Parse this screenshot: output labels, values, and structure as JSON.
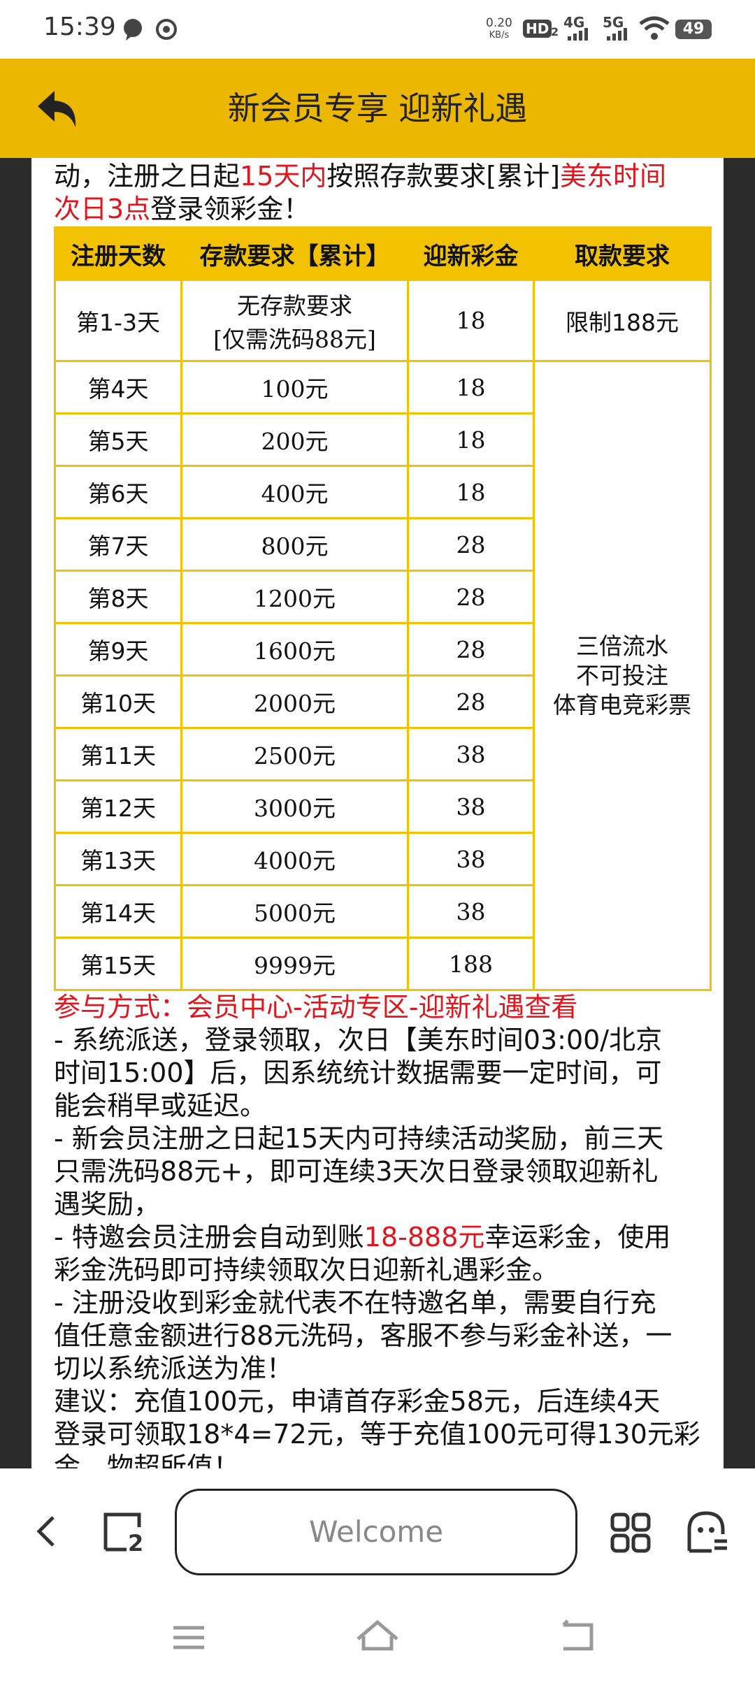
{
  "status_bar": {
    "time": "15:39",
    "speed": "0.20",
    "speed_unit": "KB/s",
    "hd": "HD",
    "sim": "2",
    "net1": "4G",
    "net2": "5G",
    "battery": "49"
  },
  "header": {
    "title": "新会员专享 迎新礼遇"
  },
  "intro": {
    "lines": [
      [
        {
          "text": "动，注册之日起"
        },
        {
          "text": "15天内",
          "color": "#e0151d"
        },
        {
          "text": "按照存款要求[累计]"
        },
        {
          "text": "美东时间",
          "color": "#e0151d"
        }
      ],
      [
        {
          "text": "次日3点",
          "color": "#e0151d"
        },
        {
          "text": "登录领彩金！"
        }
      ]
    ]
  },
  "table": {
    "headers": [
      "注册天数",
      "存款要求【累计】",
      "迎新彩金",
      "取款要求"
    ],
    "rows": [
      [
        "第1-3天",
        "无存款要求\n[仅需洗码88元]",
        "18",
        "限制188元"
      ],
      [
        "第4天",
        "100元",
        "18"
      ],
      [
        "第5天",
        "200元",
        "18"
      ],
      [
        "第6天",
        "400元",
        "18"
      ],
      [
        "第7天",
        "800元",
        "28"
      ],
      [
        "第8天",
        "1200元",
        "28"
      ],
      [
        "第9天",
        "1600元",
        "28"
      ],
      [
        "第10天",
        "2000元",
        "28"
      ],
      [
        "第11天",
        "2500元",
        "38"
      ],
      [
        "第12天",
        "3000元",
        "38"
      ],
      [
        "第13天",
        "4000元",
        "38"
      ],
      [
        "第14天",
        "5000元",
        "38"
      ],
      [
        "第15天",
        "9999元",
        "188"
      ]
    ],
    "merged_note": "三倍流水\n不可投注\n体育电竞彩票"
  },
  "body": {
    "lines": [
      [
        {
          "text": "参与方式：会员中心-活动专区-迎新礼遇查看",
          "color": "#e0151d"
        }
      ],
      [
        {
          "text": "- 系统派送，登录领取，次日【美东时间03:00/北京"
        }
      ],
      [
        {
          "text": "时间15:00】后，因系统统计数据需要一定时间，可"
        }
      ],
      [
        {
          "text": "能会稍早或延迟。"
        }
      ],
      [
        {
          "text": "- 新会员注册之日起15天内可持续活动奖励，前三天"
        }
      ],
      [
        {
          "text": "只需洗码88元+，即可连续3天次日登录领取迎新礼"
        }
      ],
      [
        {
          "text": "遇奖励，"
        }
      ],
      [
        {
          "text": "- 特邀会员注册会自动到账"
        },
        {
          "text": "18-888元",
          "color": "#e0151d"
        },
        {
          "text": "幸运彩金，使用"
        }
      ],
      [
        {
          "text": "彩金洗码即可持续领取次日迎新礼遇彩金。"
        }
      ],
      [
        {
          "text": "- 注册没收到彩金就代表不在特邀名单，需要自行充"
        }
      ],
      [
        {
          "text": "值任意金额进行88元洗码，客服不参与彩金补送，一"
        }
      ],
      [
        {
          "text": "切以系统派送为准！"
        }
      ],
      [
        {
          "text": "建议：充值100元，申请首存彩金58元，后连续4天"
        }
      ],
      [
        {
          "text": "登录可领取18*4=72元，等于充值100元可得130元彩"
        }
      ],
      [
        {
          "text": "金，物超所值！"
        }
      ]
    ]
  },
  "bottom_bar": {
    "tab_count": "2",
    "search_placeholder": "Welcome"
  }
}
